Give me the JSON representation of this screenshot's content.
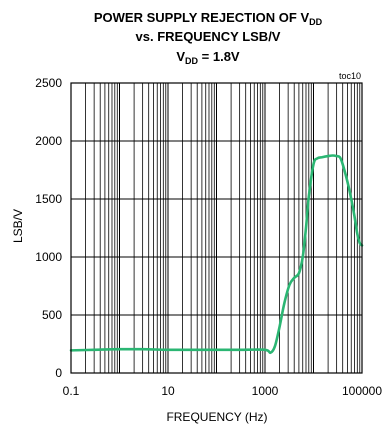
{
  "chart_data": {
    "type": "line",
    "title": {
      "line1": {
        "main": "POWER SUPPLY REJECTION OF V",
        "sub": "DD"
      },
      "line2": "vs. FREQUENCY LSB/V",
      "line3": {
        "main": "V",
        "sub": "DD",
        "rest": " = 1.8V"
      }
    },
    "tag": "toc10",
    "xlabel": "FREQUENCY (Hz)",
    "ylabel": "LSB/V",
    "x_scale": "log",
    "xlim": [
      0.1,
      100000
    ],
    "ylim": [
      0,
      2500
    ],
    "x_ticks": [
      {
        "value": 0.1,
        "label": "0.1"
      },
      {
        "value": 10,
        "label": "10"
      },
      {
        "value": 1000,
        "label": "1000"
      },
      {
        "value": 100000,
        "label": "100000"
      }
    ],
    "y_ticks": [
      {
        "value": 0,
        "label": "0"
      },
      {
        "value": 500,
        "label": "500"
      },
      {
        "value": 1000,
        "label": "1000"
      },
      {
        "value": 1500,
        "label": "1500"
      },
      {
        "value": 2000,
        "label": "2000"
      },
      {
        "value": 2500,
        "label": "2500"
      }
    ],
    "grid": true,
    "series": [
      {
        "color": "#2bb673",
        "x": [
          0.1,
          0.3,
          1,
          3,
          10,
          30,
          100,
          300,
          1000,
          1300,
          1600,
          2000,
          2500,
          3200,
          4000,
          5000,
          6000,
          7000,
          8000,
          10000,
          12000,
          15000,
          20000,
          25000,
          30000,
          35000,
          40000,
          50000,
          60000,
          70000,
          80000,
          90000,
          100000
        ],
        "y": [
          195,
          200,
          205,
          205,
          200,
          200,
          200,
          200,
          200,
          175,
          230,
          400,
          600,
          760,
          820,
          860,
          1000,
          1250,
          1520,
          1800,
          1850,
          1860,
          1870,
          1875,
          1870,
          1860,
          1800,
          1650,
          1500,
          1350,
          1200,
          1120,
          1100
        ]
      }
    ]
  }
}
